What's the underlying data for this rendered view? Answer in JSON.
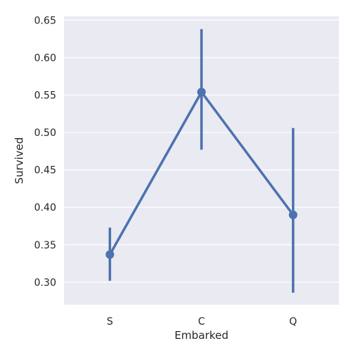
{
  "chart_data": {
    "type": "line",
    "xlabel": "Embarked",
    "ylabel": "Survived",
    "categories": [
      "S",
      "C",
      "Q"
    ],
    "series": [
      {
        "values": [
          0.337,
          0.554,
          0.39
        ],
        "ci_low": [
          0.302,
          0.477,
          0.286
        ],
        "ci_high": [
          0.373,
          0.638,
          0.506
        ]
      }
    ],
    "ylim": [
      0.27,
      0.655
    ],
    "yticks": [
      0.3,
      0.35,
      0.4,
      0.45,
      0.5,
      0.55,
      0.6,
      0.65
    ],
    "ytick_labels": [
      "0.30",
      "0.35",
      "0.40",
      "0.45",
      "0.50",
      "0.55",
      "0.60",
      "0.65"
    ],
    "grid": true,
    "legend": "none",
    "colors": {
      "series": "#4c72b0",
      "background": "#eaeaf2",
      "grid": "#ffffff"
    }
  }
}
